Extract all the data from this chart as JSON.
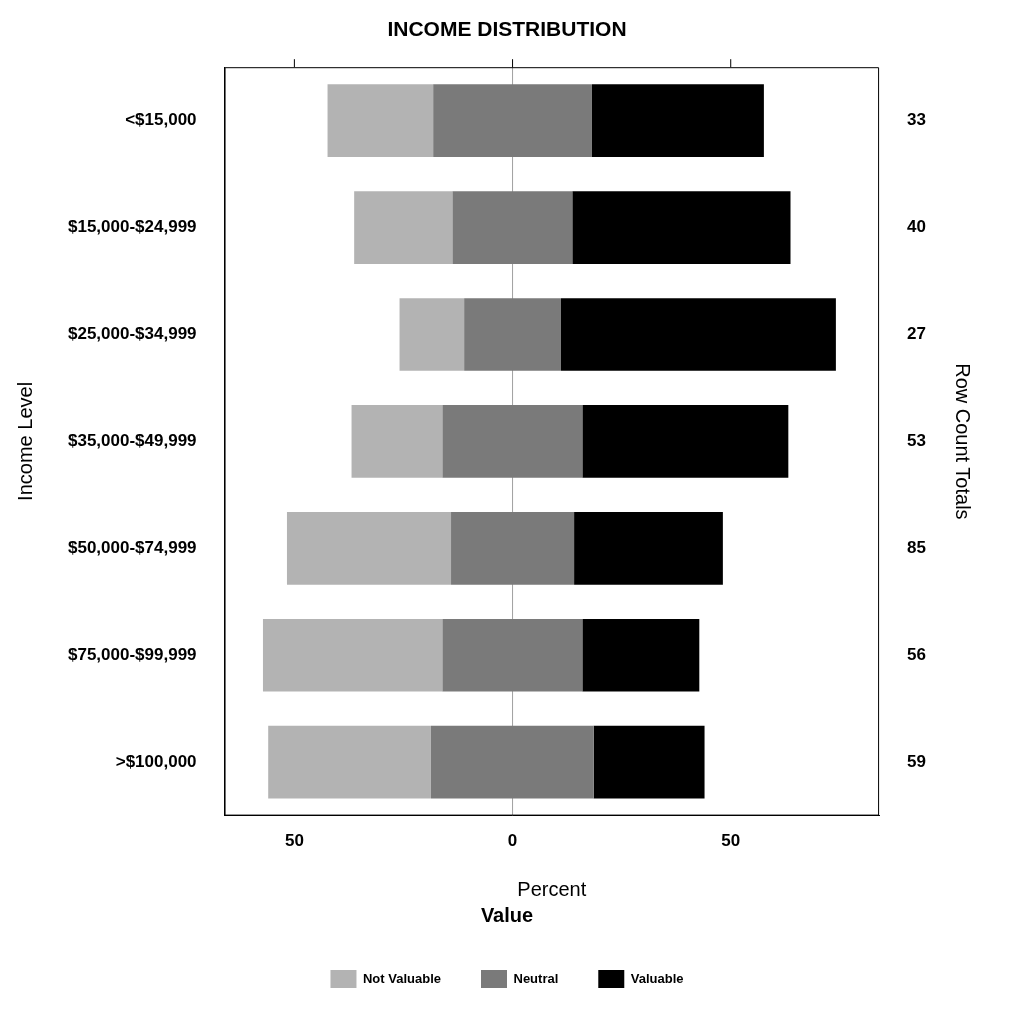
{
  "chart_data": {
    "type": "bar",
    "orientation": "horizontal",
    "title": "INCOME DISTRIBUTION",
    "xlabel": "Percent",
    "ylabel": "Income Level",
    "y2label": "Row Count Totals",
    "legend_title": "Value",
    "legend": "bottom",
    "grid": false,
    "categories": [
      "<$15,000",
      "$15,000-$24,999",
      "$25,000-$34,999",
      "$35,000-$49,999",
      "$50,000-$74,999",
      "$75,000-$99,999",
      ">$100,000"
    ],
    "series": [
      {
        "name": "Not Valuable",
        "color": "#b3b3b3",
        "base": [
          -42.4,
          -36.3,
          -25.9,
          -36.9,
          -51.7,
          -57.2,
          -56.0
        ],
        "values": [
          24.2,
          22.5,
          14.8,
          20.8,
          37.6,
          41.1,
          37.3
        ]
      },
      {
        "name": "Neutral",
        "color": "#7a7a7a",
        "base": [
          -18.2,
          -13.8,
          -11.1,
          -16.1,
          -14.1,
          -16.1,
          -18.7
        ],
        "values": [
          36.4,
          27.5,
          22.2,
          32.1,
          28.2,
          32.1,
          37.3
        ]
      },
      {
        "name": "Valuable",
        "color": "#000000",
        "base": [
          18.2,
          13.7,
          11.1,
          16.0,
          14.1,
          16.0,
          18.6
        ],
        "values": [
          39.4,
          50.0,
          63.0,
          47.2,
          34.1,
          26.8,
          25.4
        ]
      }
    ],
    "y2_categories": [
      "33",
      "40",
      "27",
      "53",
      "85",
      "56",
      "59"
    ],
    "xlim": [
      -66,
      84
    ],
    "xticks": [
      {
        "value": -50,
        "label": "50"
      },
      0,
      50
    ],
    "ref_lines": [
      {
        "axis": "x",
        "value": 0,
        "color": "#a0a0a0"
      }
    ]
  }
}
